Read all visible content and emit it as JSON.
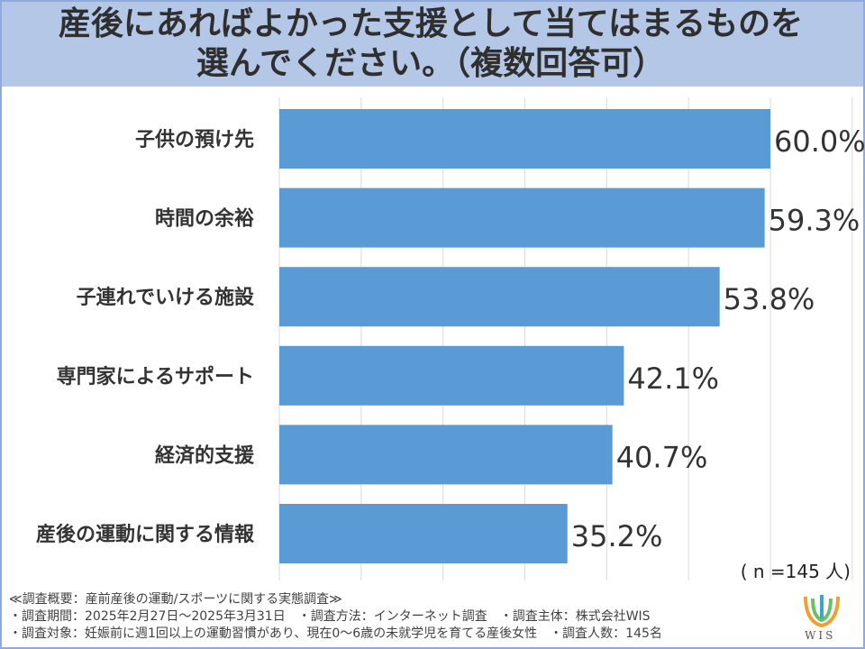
{
  "title_line1": "産後にあればよかった支援として当てはまるものを",
  "title_line2": "選んでください。（複数回答可）",
  "n_note": "( n =145 人)",
  "chart_data": {
    "type": "bar",
    "orientation": "horizontal",
    "categories": [
      "子供の預け先",
      "時間の余裕",
      "子連れでいける施設",
      "専門家によるサポート",
      "経済的支援",
      "産後の運動に関する情報"
    ],
    "values": [
      60.0,
      59.3,
      53.8,
      42.1,
      40.7,
      35.2
    ],
    "value_labels": [
      "60.0%",
      "59.3%",
      "53.8%",
      "42.1%",
      "40.7%",
      "35.2%"
    ],
    "xlim": [
      0,
      60
    ],
    "grid": true,
    "bar_color": "#5b9bd5",
    "grid_color": "#d9d9d9"
  },
  "notes": {
    "line1": "≪調査概要：産前産後の運動/スポーツに関する実態調査≫",
    "line2": "・調査期間：2025年2月27日〜2025年3月31日　・調査方法：インターネット調査　・調査主体：株式会社WIS",
    "line3": "・調査対象：妊娠前に週1回以上の運動習慣があり、現在0〜6歳の未就学児を育てる産後女性　・調査人数：145名"
  },
  "logo_text": "WIS"
}
